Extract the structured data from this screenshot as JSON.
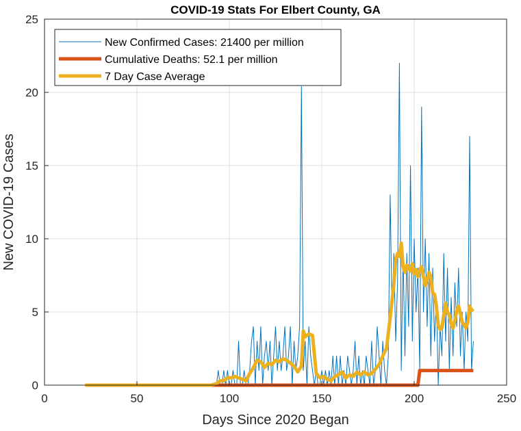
{
  "chart_data": {
    "type": "line",
    "title": "COVID-19 Stats For Elbert County, GA",
    "xlabel": "Days Since 2020 Began",
    "ylabel": "New COVID-19 Cases",
    "xlim": [
      0,
      250
    ],
    "ylim": [
      0,
      25
    ],
    "xticks": [
      0,
      50,
      100,
      150,
      200,
      250
    ],
    "yticks": [
      0,
      5,
      10,
      15,
      20,
      25
    ],
    "grid": true,
    "legend_position": "top-left",
    "series": [
      {
        "name": "New Confirmed Cases: 21400 per million",
        "color": "#0072BD",
        "x": [
          93,
          94,
          95,
          96,
          97,
          98,
          99,
          100,
          101,
          102,
          103,
          104,
          105,
          106,
          107,
          108,
          109,
          110,
          111,
          112,
          113,
          114,
          115,
          116,
          117,
          118,
          119,
          120,
          121,
          122,
          123,
          124,
          125,
          126,
          127,
          128,
          129,
          130,
          131,
          132,
          133,
          134,
          135,
          136,
          137,
          138,
          139,
          140,
          141,
          142,
          143,
          144,
          145,
          146,
          147,
          148,
          149,
          150,
          151,
          152,
          153,
          154,
          155,
          156,
          157,
          158,
          159,
          160,
          161,
          162,
          163,
          164,
          165,
          166,
          167,
          168,
          169,
          170,
          171,
          172,
          173,
          174,
          175,
          176,
          177,
          178,
          179,
          180,
          181,
          182,
          183,
          184,
          185,
          186,
          187,
          188,
          189,
          190,
          191,
          192,
          193,
          194,
          195,
          196,
          197,
          198,
          199,
          200,
          201,
          202,
          203,
          204,
          205,
          206,
          207,
          208,
          209,
          210,
          211,
          212,
          213,
          214,
          215,
          216,
          217,
          218,
          219,
          220,
          221,
          222,
          223,
          224,
          225,
          226,
          227,
          228,
          229,
          230,
          231,
          232
        ],
        "y": [
          0,
          1,
          0,
          0,
          1,
          0,
          1,
          0,
          0,
          1,
          0,
          0,
          3,
          0,
          0,
          1,
          0,
          0,
          1,
          3,
          4,
          0,
          3,
          1,
          4,
          0,
          2,
          3,
          1,
          3,
          0,
          2,
          4,
          1,
          3,
          1,
          2,
          4,
          1,
          2,
          4,
          0,
          3,
          1,
          2,
          4,
          20.4,
          1,
          3,
          0,
          4,
          2,
          1,
          0,
          1,
          0,
          0,
          1,
          0,
          1,
          0,
          1,
          0,
          2,
          0,
          2,
          0,
          2,
          0,
          1,
          0,
          2,
          1,
          0,
          1,
          3,
          0,
          2,
          0,
          1,
          0,
          2,
          1,
          0,
          3,
          0,
          1,
          4,
          2,
          0,
          3,
          1,
          0,
          2,
          13,
          5,
          9,
          3,
          7,
          22,
          1,
          9,
          2,
          9,
          4,
          15,
          3,
          10,
          5,
          8,
          1,
          19,
          5,
          10,
          4,
          9,
          2,
          8,
          3,
          6,
          0,
          4,
          2,
          9,
          3,
          8,
          1,
          6,
          2,
          7,
          4,
          8,
          2,
          5,
          1,
          5,
          3,
          17,
          1,
          3
        ]
      },
      {
        "name": "Cumulative Deaths: 52.1 per million",
        "color": "#D95319",
        "x": [
          22,
          202,
          203,
          232
        ],
        "y": [
          0,
          0,
          1,
          1
        ]
      },
      {
        "name": "7 Day Case Average",
        "color": "#EDB120",
        "x": [
          22,
          30,
          40,
          50,
          60,
          70,
          80,
          90,
          93,
          95,
          97,
          99,
          101,
          103,
          105,
          107,
          109,
          111,
          113,
          115,
          117,
          119,
          121,
          123,
          125,
          127,
          129,
          131,
          133,
          135,
          137,
          139,
          140,
          141,
          143,
          145,
          147,
          149,
          151,
          153,
          155,
          157,
          159,
          161,
          163,
          165,
          167,
          169,
          171,
          173,
          175,
          177,
          179,
          181,
          183,
          185,
          187,
          189,
          190,
          191,
          192,
          193,
          194,
          195,
          196,
          197,
          198,
          199,
          200,
          201,
          202,
          203,
          204,
          205,
          206,
          207,
          208,
          209,
          210,
          211,
          212,
          213,
          214,
          215,
          216,
          217,
          218,
          219,
          220,
          221,
          222,
          223,
          224,
          225,
          226,
          227,
          228,
          229,
          230,
          231,
          232
        ],
        "y": [
          0,
          0,
          0,
          0,
          0,
          0,
          0,
          0,
          0.1,
          0.3,
          0.3,
          0.5,
          0.5,
          0.6,
          0.5,
          0.4,
          0.3,
          0.8,
          1.2,
          1.7,
          1.6,
          1.2,
          1.5,
          1.4,
          1.7,
          1.6,
          1.8,
          1.7,
          1.5,
          1.3,
          0.9,
          1.3,
          3.7,
          3.3,
          3.5,
          3.4,
          0.8,
          0.5,
          0.6,
          0.4,
          0.3,
          0.6,
          0.7,
          0.9,
          0.5,
          0.7,
          0.6,
          0.9,
          0.7,
          0.9,
          0.7,
          0.8,
          1.1,
          1.4,
          2.0,
          2.5,
          4.6,
          6.9,
          8.6,
          9.0,
          8.8,
          9.7,
          8.1,
          7.7,
          8.2,
          8.0,
          7.8,
          8.3,
          7.6,
          7.9,
          7.4,
          7.9,
          8.1,
          7.4,
          6.8,
          7.2,
          7.7,
          7.4,
          6.3,
          6.2,
          5.4,
          4.1,
          3.8,
          3.9,
          4.8,
          5.6,
          5.0,
          4.8,
          4.2,
          3.9,
          4.4,
          5.1,
          5.4,
          4.9,
          4.3,
          4.1,
          3.9,
          4.3,
          5.4,
          5.1,
          5.2
        ]
      }
    ]
  }
}
